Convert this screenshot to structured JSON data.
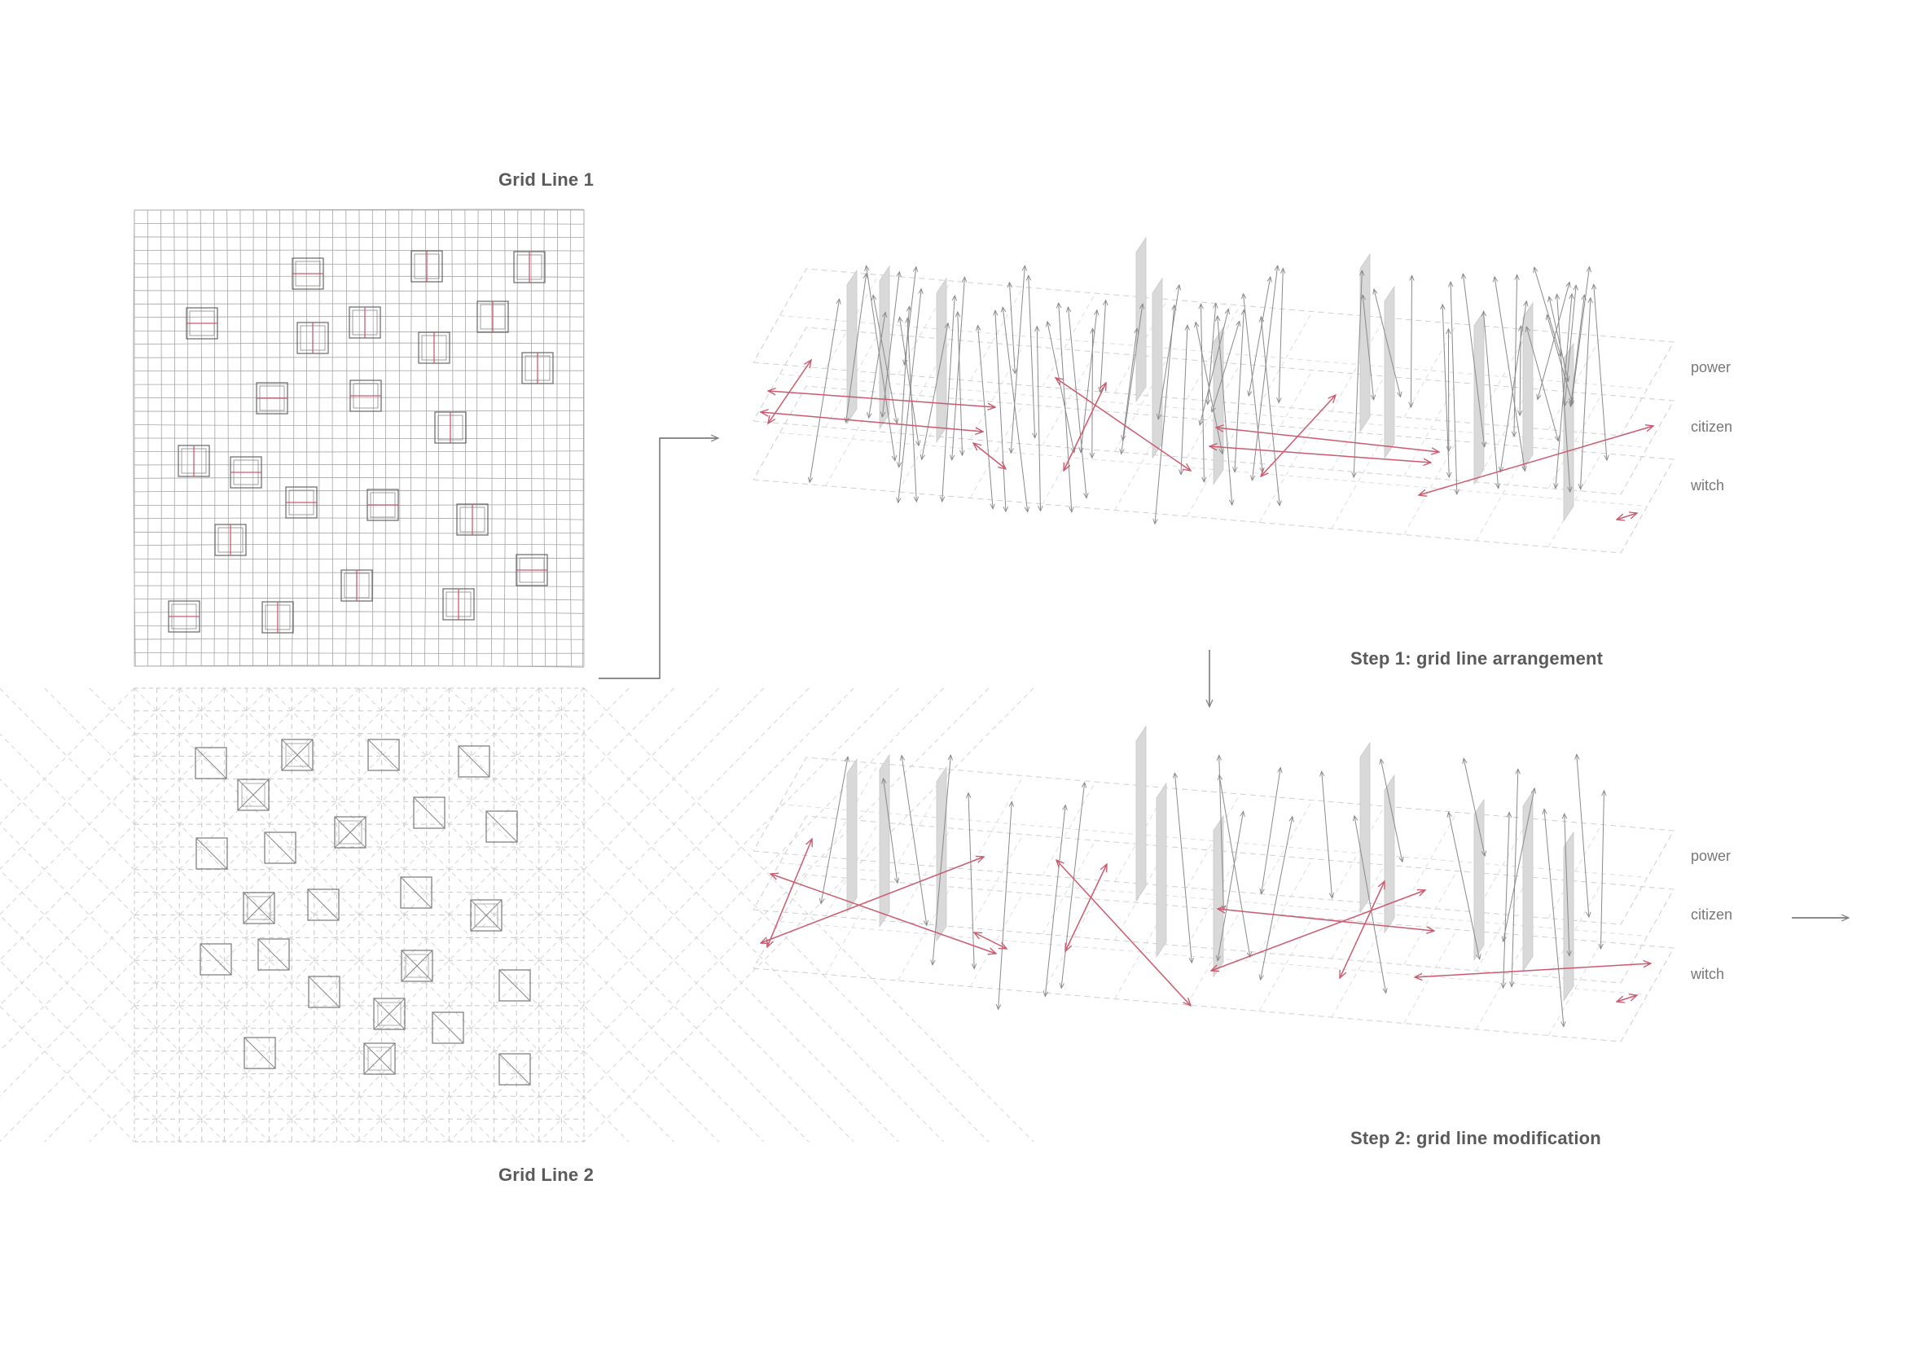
{
  "titles": {
    "grid_line_1": "Grid Line 1",
    "grid_line_2": "Grid Line 2",
    "step1": "Step 1: grid line arrangement",
    "step2": "Step 2: grid line modification"
  },
  "layers": {
    "step1": [
      "power",
      "citizen",
      "witch"
    ],
    "step2": [
      "power",
      "citizen",
      "witch"
    ]
  },
  "colors": {
    "accent": "#cc5a6e",
    "grid": "#9a9a9a",
    "dashed": "#c8c8c8",
    "plane": "#d9d9d9",
    "text": "#5a5a5a"
  }
}
